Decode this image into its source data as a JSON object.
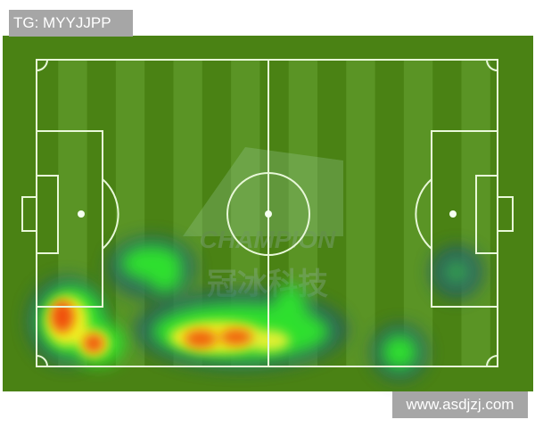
{
  "header": {
    "tag": "TG: MYYJJPP"
  },
  "footer": {
    "site": "www.asdjzj.com"
  },
  "watermark": {
    "brand": "CHAMPION",
    "chinese": "冠冰科技"
  },
  "colors": {
    "grass_dark": "#4a8214",
    "grass_light": "#5a9425",
    "lines": "#e8f8d8",
    "heat_low": "#22dd22",
    "heat_mid": "#f0f020",
    "heat_high": "#f04010"
  }
}
